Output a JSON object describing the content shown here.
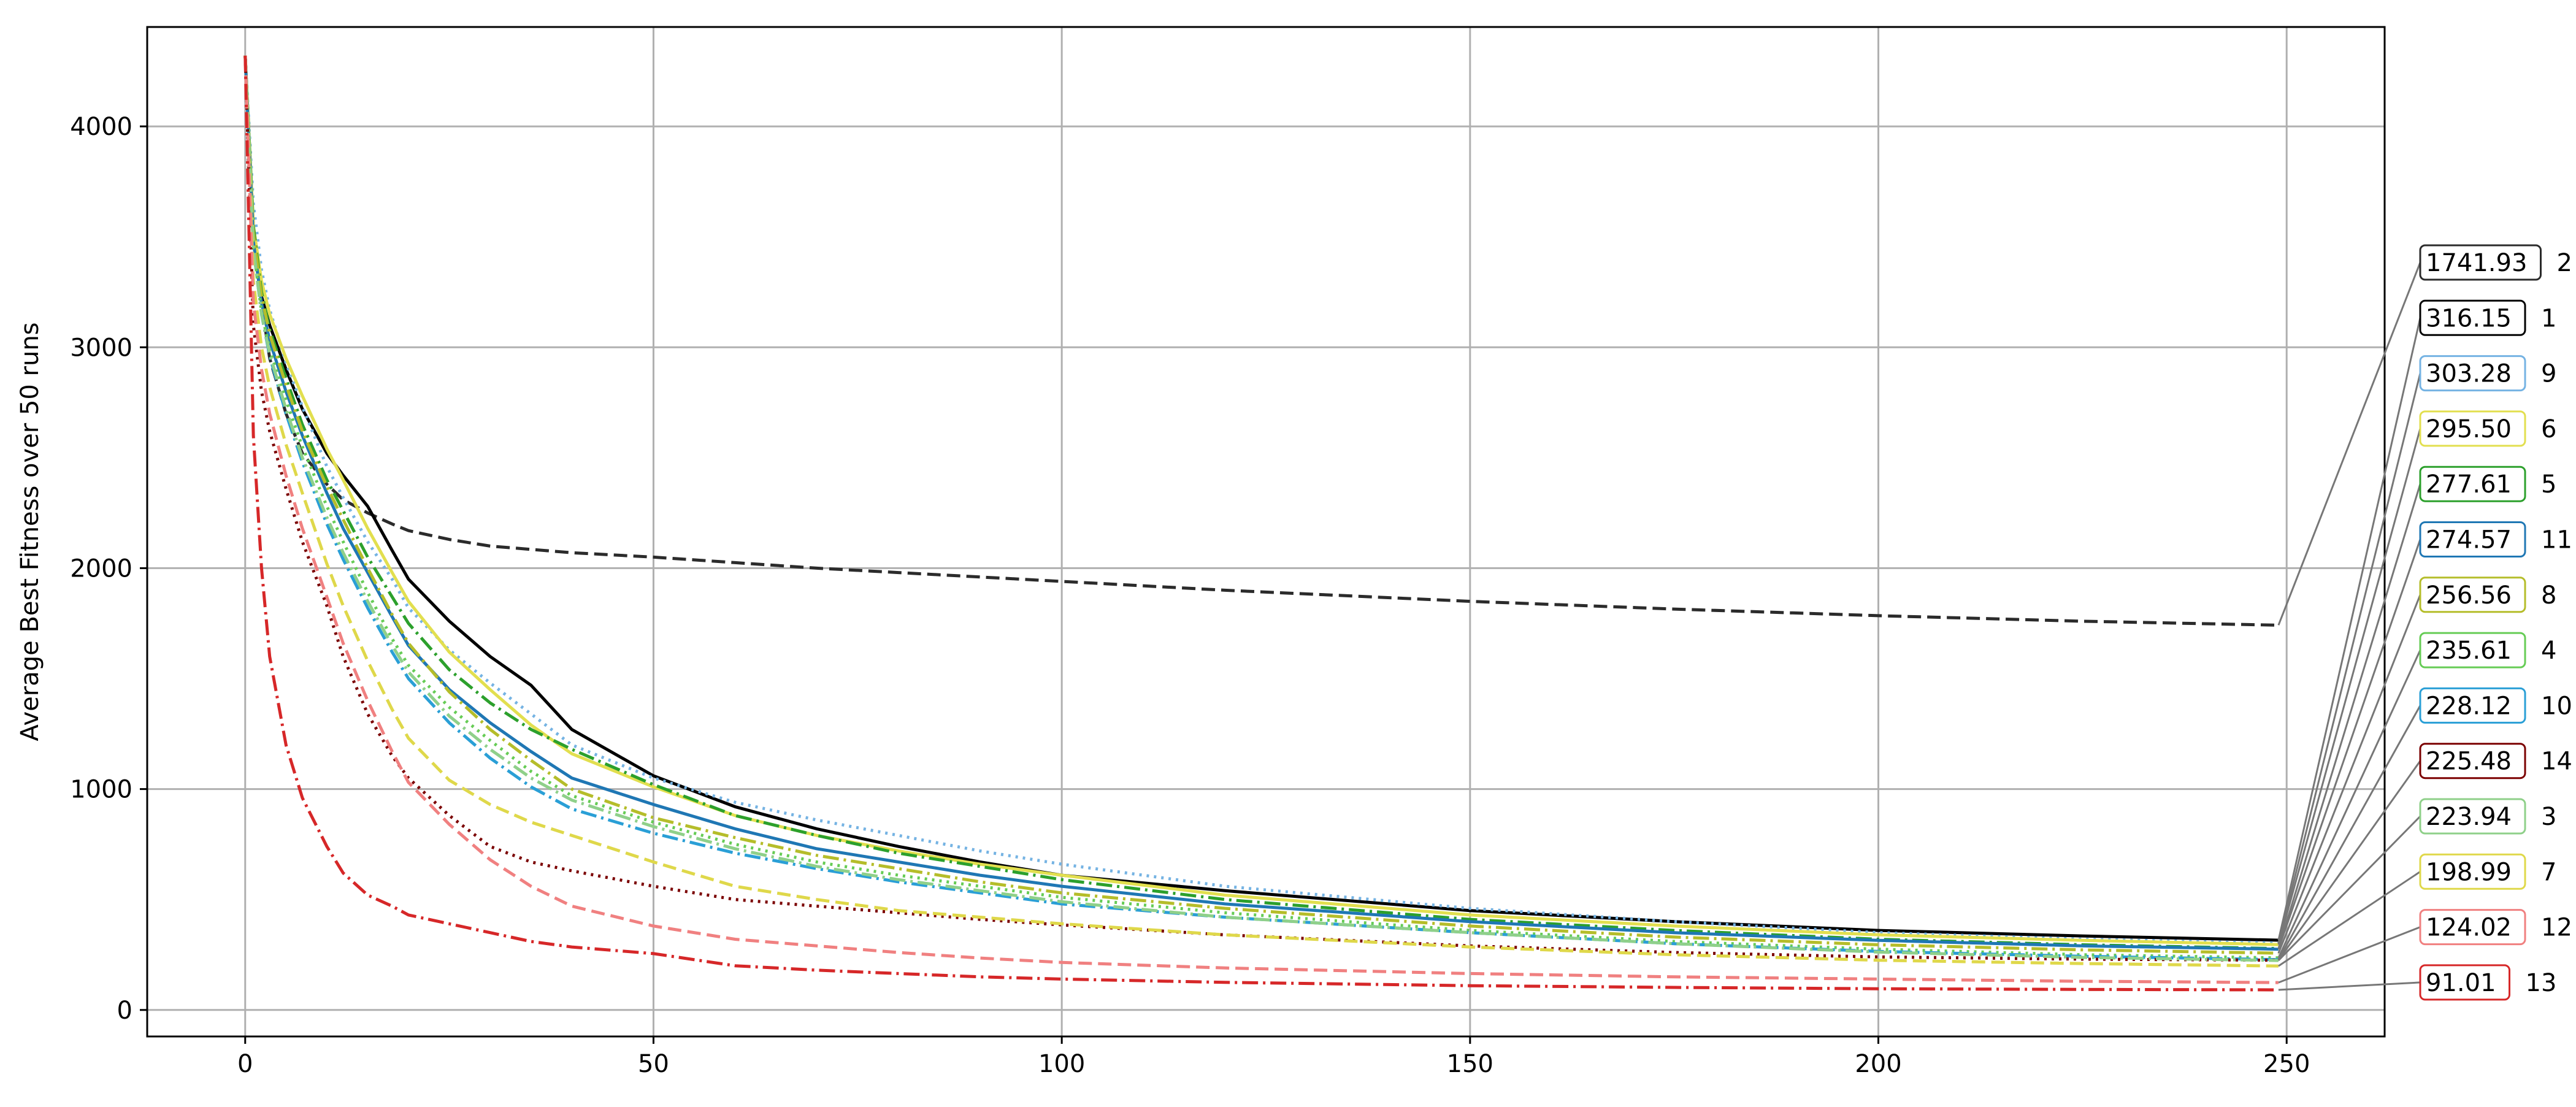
{
  "chart_data": {
    "type": "line",
    "title": "",
    "xlabel": "",
    "ylabel": "Average Best Fitness over 50 runs",
    "xlim": [
      -12,
      262
    ],
    "ylim": [
      -120,
      4450
    ],
    "xticks": [
      0,
      50,
      100,
      150,
      200,
      250
    ],
    "yticks": [
      0,
      1000,
      2000,
      3000,
      4000
    ],
    "grid": true,
    "legend": "none",
    "x": [
      0,
      1,
      2,
      3,
      5,
      7,
      10,
      12,
      15,
      18,
      20,
      25,
      30,
      35,
      40,
      50,
      60,
      70,
      80,
      90,
      100,
      120,
      150,
      175,
      200,
      225,
      249
    ],
    "series": [
      {
        "name": "2",
        "end_label": "1741.93",
        "color": "#2b2b2b",
        "dash": "dashed",
        "values": [
          4320,
          3550,
          3200,
          2950,
          2700,
          2520,
          2380,
          2310,
          2250,
          2200,
          2170,
          2130,
          2100,
          2085,
          2070,
          2050,
          2025,
          2000,
          1980,
          1960,
          1940,
          1900,
          1850,
          1815,
          1785,
          1760,
          1742
        ]
      },
      {
        "name": "1",
        "end_label": "316.15",
        "color": "#000000",
        "dash": "solid",
        "values": [
          4320,
          3500,
          3230,
          3100,
          2900,
          2720,
          2520,
          2420,
          2280,
          2080,
          1950,
          1760,
          1600,
          1470,
          1270,
          1060,
          920,
          820,
          740,
          670,
          610,
          540,
          450,
          400,
          360,
          335,
          316
        ]
      },
      {
        "name": "9",
        "end_label": "303.28",
        "color": "#75b3e3",
        "dash": "dotted",
        "values": [
          4320,
          3650,
          3350,
          3170,
          2930,
          2730,
          2460,
          2320,
          2120,
          1950,
          1820,
          1630,
          1480,
          1340,
          1200,
          1050,
          940,
          860,
          790,
          720,
          660,
          560,
          460,
          400,
          350,
          320,
          303
        ]
      },
      {
        "name": "6",
        "end_label": "295.50",
        "color": "#e2df4f",
        "dash": "solid",
        "values": [
          4320,
          3550,
          3300,
          3150,
          2950,
          2780,
          2540,
          2400,
          2180,
          1980,
          1850,
          1620,
          1450,
          1290,
          1160,
          1010,
          880,
          790,
          720,
          660,
          610,
          520,
          430,
          380,
          340,
          315,
          296
        ]
      },
      {
        "name": "5",
        "end_label": "277.61",
        "color": "#2ca02c",
        "dash": "dashdot",
        "values": [
          4320,
          3550,
          3250,
          3080,
          2860,
          2650,
          2400,
          2260,
          2050,
          1870,
          1750,
          1540,
          1390,
          1270,
          1180,
          1020,
          880,
          790,
          710,
          650,
          590,
          500,
          410,
          360,
          320,
          295,
          278
        ]
      },
      {
        "name": "11",
        "end_label": "274.57",
        "color": "#1f77b4",
        "dash": "solid",
        "values": [
          4320,
          3480,
          3200,
          3030,
          2800,
          2600,
          2340,
          2180,
          1980,
          1780,
          1650,
          1450,
          1300,
          1170,
          1050,
          930,
          820,
          730,
          670,
          610,
          560,
          480,
          400,
          350,
          315,
          290,
          275
        ]
      },
      {
        "name": "8",
        "end_label": "256.56",
        "color": "#b5bd2a",
        "dash": "dashdot",
        "values": [
          4320,
          3520,
          3230,
          3060,
          2830,
          2620,
          2370,
          2220,
          2000,
          1790,
          1660,
          1440,
          1270,
          1130,
          1000,
          870,
          780,
          700,
          640,
          580,
          530,
          460,
          380,
          330,
          295,
          272,
          257
        ]
      },
      {
        "name": "4",
        "end_label": "235.61",
        "color": "#66cc55",
        "dash": "dotted",
        "values": [
          4320,
          3450,
          3160,
          2990,
          2760,
          2550,
          2280,
          2120,
          1890,
          1680,
          1560,
          1370,
          1220,
          1080,
          970,
          850,
          750,
          670,
          610,
          560,
          510,
          440,
          360,
          310,
          275,
          250,
          236
        ]
      },
      {
        "name": "10",
        "end_label": "228.12",
        "color": "#2a9fd6",
        "dash": "dashdot",
        "values": [
          4320,
          3450,
          3150,
          2960,
          2700,
          2480,
          2200,
          2040,
          1820,
          1620,
          1500,
          1300,
          1140,
          1010,
          910,
          800,
          710,
          640,
          580,
          530,
          480,
          420,
          350,
          300,
          265,
          243,
          228
        ]
      },
      {
        "name": "14",
        "end_label": "225.48",
        "color": "#7b0000",
        "dash": "dotted",
        "values": [
          4320,
          3100,
          2800,
          2620,
          2360,
          2120,
          1830,
          1600,
          1340,
          1150,
          1050,
          880,
          740,
          670,
          630,
          560,
          500,
          470,
          440,
          410,
          385,
          340,
          290,
          260,
          240,
          230,
          225
        ]
      },
      {
        "name": "3",
        "end_label": "223.94",
        "color": "#8fd08a",
        "dash": "dashdot",
        "values": [
          4320,
          3450,
          3150,
          2970,
          2720,
          2500,
          2230,
          2070,
          1850,
          1650,
          1530,
          1330,
          1180,
          1050,
          950,
          830,
          730,
          650,
          590,
          540,
          490,
          420,
          350,
          300,
          262,
          238,
          224
        ]
      },
      {
        "name": "7",
        "end_label": "198.99",
        "color": "#dfd84a",
        "dash": "dashed",
        "values": [
          4320,
          3300,
          3000,
          2820,
          2560,
          2340,
          2020,
          1830,
          1580,
          1360,
          1230,
          1040,
          930,
          850,
          790,
          670,
          560,
          500,
          450,
          420,
          390,
          340,
          285,
          250,
          225,
          210,
          199
        ]
      },
      {
        "name": "12",
        "end_label": "124.02",
        "color": "#f08080",
        "dash": "dashed",
        "values": [
          4320,
          3200,
          2900,
          2700,
          2420,
          2180,
          1870,
          1660,
          1400,
          1170,
          1030,
          840,
          680,
          560,
          470,
          380,
          320,
          290,
          260,
          235,
          215,
          190,
          165,
          150,
          140,
          130,
          124
        ]
      },
      {
        "name": "13",
        "end_label": "91.01",
        "color": "#d62728",
        "dash": "dashdot",
        "values": [
          4320,
          2600,
          2000,
          1600,
          1200,
          960,
          740,
          620,
          520,
          470,
          430,
          390,
          350,
          310,
          285,
          255,
          200,
          180,
          165,
          150,
          140,
          125,
          110,
          102,
          96,
          93,
          91
        ]
      }
    ]
  }
}
